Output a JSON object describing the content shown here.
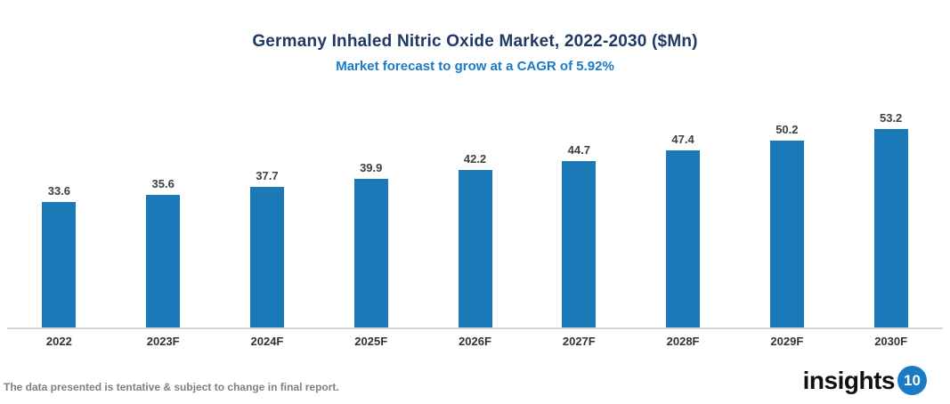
{
  "header": {
    "title": "Germany Inhaled Nitric Oxide Market, 2022-2030 ($Mn)",
    "subtitle": "Market forecast to grow at a CAGR of 5.92%"
  },
  "chart_data": {
    "type": "bar",
    "title": "Germany Inhaled Nitric Oxide Market, 2022-2030 ($Mn)",
    "subtitle": "Market forecast to grow at a CAGR of 5.92%",
    "categories": [
      "2022",
      "2023F",
      "2024F",
      "2025F",
      "2026F",
      "2027F",
      "2028F",
      "2029F",
      "2030F"
    ],
    "values": [
      33.6,
      35.6,
      37.7,
      39.9,
      42.2,
      44.7,
      47.4,
      50.2,
      53.2
    ],
    "xlabel": "",
    "ylabel": "",
    "ylim": [
      0,
      57
    ],
    "grid": false,
    "legend": false,
    "data_labels": true,
    "cagr_percent": 5.92
  },
  "footer": {
    "disclaimer": "The data presented is tentative & subject to change in final report.",
    "logo_text": "insights",
    "logo_badge": "10"
  },
  "colors": {
    "title": "#1F3864",
    "subtitle": "#1B7AC5",
    "bar": "#1B79B8",
    "axis_line": "#D6D6D6",
    "data_label": "#404040",
    "category_label": "#333333",
    "disclaimer": "#808080",
    "logo_badge_bg": "#1B7AC5"
  }
}
